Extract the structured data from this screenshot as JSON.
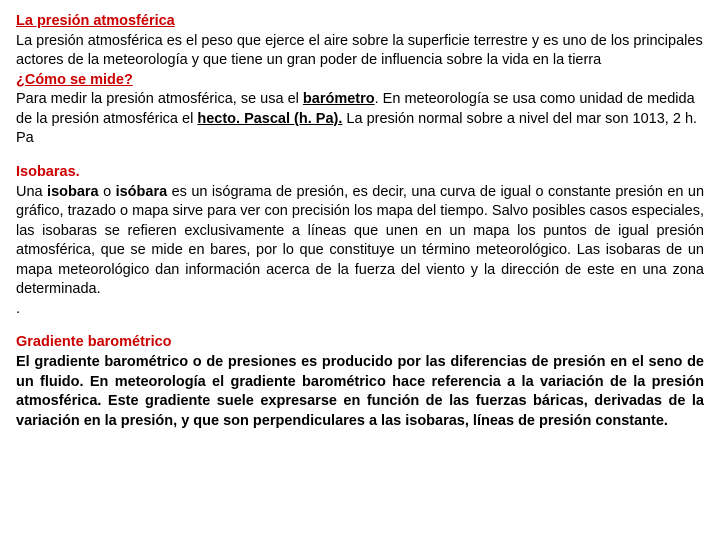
{
  "colors": {
    "title_red": "#cc0000",
    "text_black": "#000000",
    "background": "#ffffff"
  },
  "typography": {
    "font_family": "Arial, Helvetica, sans-serif",
    "body_fontsize": 14.5,
    "line_height": 1.35
  },
  "s1": {
    "title": "La presión atmosférica",
    "p1": "La presión atmosférica es el peso que ejerce el aire sobre la superficie terrestre y es uno de los principales actores de la meteorología y que tiene un gran poder de influencia sobre la vida en la tierra",
    "q": "¿Cómo se mide?",
    "p2a": "Para medir la presión atmosférica, se usa el ",
    "p2b": "barómetro",
    "p2c": ". En meteorología se usa como unidad de medida de la presión atmosférica el ",
    "p2d": "hecto. Pascal (h. Pa).",
    "p2e": " La presión normal sobre a nivel del mar son 1013, 2 h. Pa"
  },
  "s2": {
    "title": "Isobaras.",
    "p1a": "Una ",
    "p1b": "isobara",
    "p1c": " o ",
    "p1d": "isóbara",
    "p1e": " es un isógrama de presión, es decir, una curva de igual o constante presión en un gráfico, trazado o mapa sirve para ver con precisión los mapa del tiempo. Salvo posibles casos especiales, las isobaras se refieren exclusivamente a líneas que unen en un mapa los puntos de igual presión atmosférica, que se mide en bares, por lo que constituye un término meteorológico. Las isobaras de un mapa meteorológico dan información acerca de la fuerza del viento y la dirección de este en una zona determinada.",
    "dot": "."
  },
  "s3": {
    "title": "Gradiente barométrico",
    "p1": "El gradiente barométrico o de presiones es producido por las diferencias de presión en el seno de un fluido. En meteorología el gradiente barométrico hace referencia a la variación de la presión atmosférica. Este gradiente suele expresarse en función de las fuerzas báricas, derivadas de la variación en la presión, y que son perpendiculares a las isobaras, líneas de presión constante."
  }
}
